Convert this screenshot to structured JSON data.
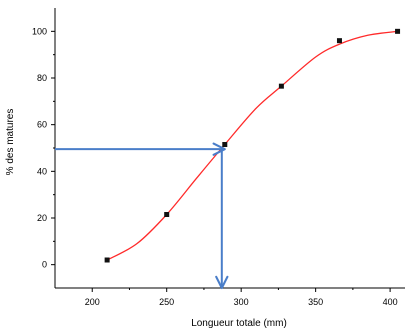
{
  "chart_data": {
    "type": "scatter",
    "title": "",
    "xlabel": "Longueur totale (mm)",
    "ylabel": "% des matures",
    "xlim": [
      175,
      410
    ],
    "ylim": [
      -10,
      110
    ],
    "x_ticks": [
      200,
      250,
      300,
      350,
      400
    ],
    "y_ticks": [
      0,
      20,
      40,
      60,
      80,
      100
    ],
    "x_tick_labels": [
      "200",
      "250",
      "300",
      "350",
      "400"
    ],
    "y_tick_labels": [
      "0",
      "20",
      "40",
      "60",
      "80",
      "100"
    ],
    "grid": false,
    "legend": "none",
    "series": [
      {
        "points": [
          {
            "x": 210,
            "y": 2
          },
          {
            "x": 250,
            "y": 21.5
          },
          {
            "x": 289,
            "y": 51.5
          },
          {
            "x": 327,
            "y": 76.5
          },
          {
            "x": 366,
            "y": 96
          },
          {
            "x": 405,
            "y": 100
          }
        ],
        "color": "#111111"
      }
    ],
    "fit_curve": {
      "type": "logistic",
      "color": "#ff2a2a",
      "x_range": [
        210,
        405
      ],
      "points": [
        {
          "x": 210,
          "y": 2
        },
        {
          "x": 230,
          "y": 9
        },
        {
          "x": 250,
          "y": 21.5
        },
        {
          "x": 270,
          "y": 37
        },
        {
          "x": 289,
          "y": 51.5
        },
        {
          "x": 310,
          "y": 67
        },
        {
          "x": 327,
          "y": 76.5
        },
        {
          "x": 350,
          "y": 89
        },
        {
          "x": 366,
          "y": 94.5
        },
        {
          "x": 385,
          "y": 98.3
        },
        {
          "x": 405,
          "y": 100
        }
      ]
    },
    "annotations": [
      {
        "kind": "arrow",
        "from": {
          "x": 175,
          "y": 49.5
        },
        "to": {
          "x": 289,
          "y": 49.5
        },
        "color": "#4a7ec9"
      },
      {
        "kind": "arrow",
        "from": {
          "x": 287,
          "y": 49.5
        },
        "to": {
          "x": 287,
          "y": -10
        },
        "color": "#4a7ec9"
      }
    ]
  }
}
